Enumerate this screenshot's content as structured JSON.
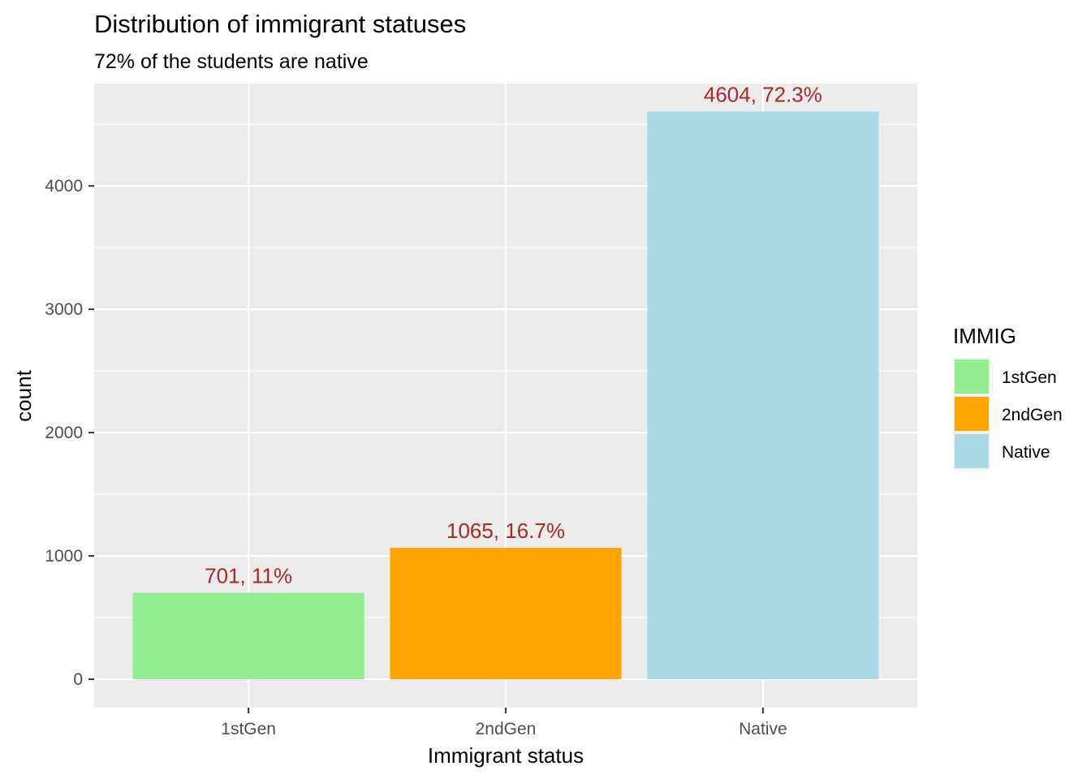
{
  "chart_data": {
    "type": "bar",
    "title": "Distribution of immigrant statuses",
    "subtitle": "72% of the students are native",
    "xlabel": "Immigrant status",
    "ylabel": "count",
    "categories": [
      "1stGen",
      "2ndGen",
      "Native"
    ],
    "values": [
      701,
      1065,
      4604
    ],
    "bar_labels": [
      "701, 11%",
      "1065, 16.7%",
      "4604, 72.3%"
    ],
    "colors": [
      "#90EE90",
      "#FFA500",
      "#ADD8E6"
    ],
    "label_color": "#A52A2A",
    "panel_background": "#EBEBEB",
    "ylim": [
      -230,
      4830
    ],
    "yticks": [
      0,
      1000,
      2000,
      3000,
      4000
    ],
    "ytick_labels": [
      "0",
      "1000",
      "2000",
      "3000",
      "4000"
    ],
    "grid": true,
    "legend": {
      "title": "IMMIG",
      "items": [
        "1stGen",
        "2ndGen",
        "Native"
      ],
      "position": "right"
    }
  }
}
